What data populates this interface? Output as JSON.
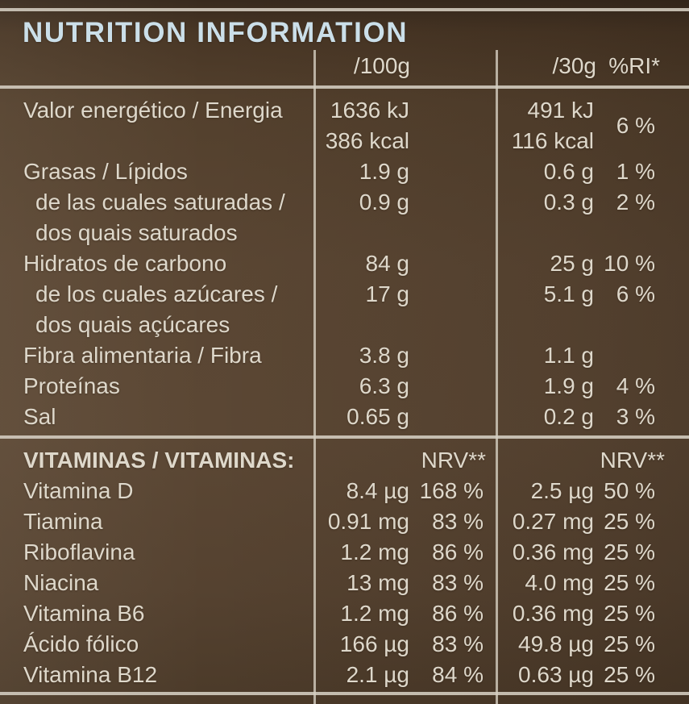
{
  "title": "NUTRITION INFORMATION",
  "columns": {
    "per100": "/100g",
    "per30": "/30g",
    "ri": "%RI*"
  },
  "colors": {
    "background_brown": "#5a4633",
    "background_dark_edge": "#382a1e",
    "text_cream": "#ded8cb",
    "title_pale_blue": "#cbdfe9",
    "rule_line": "#d5cec1"
  },
  "rows": [
    {
      "label": "Valor energético / Energia",
      "v100_kj": "1636 kJ",
      "v100_kcal": "386 kcal",
      "v30_kj": "491 kJ",
      "v30_kcal": "116 kcal",
      "ri": "6 %"
    },
    {
      "label": "Grasas / Lípidos",
      "v100": "1.9 g",
      "v30": "0.6 g",
      "ri": "1 %"
    },
    {
      "label": "de las cuales saturadas /",
      "v100": "0.9 g",
      "v30": "0.3 g",
      "ri": "2 %"
    },
    {
      "label": "dos quais saturados",
      "v100": "",
      "v30": "",
      "ri": ""
    },
    {
      "label": "Hidratos de carbono",
      "v100": "84 g",
      "v30": "25 g",
      "ri": "10 %"
    },
    {
      "label": "de los cuales azúcares /",
      "v100": "17 g",
      "v30": "5.1 g",
      "ri": "6 %"
    },
    {
      "label": "dos quais açúcares",
      "v100": "",
      "v30": "",
      "ri": ""
    },
    {
      "label": "Fibra alimentaria / Fibra",
      "v100": "3.8 g",
      "v30": "1.1 g",
      "ri": ""
    },
    {
      "label": "Proteínas",
      "v100": "6.3 g",
      "v30": "1.9 g",
      "ri": "4 %"
    },
    {
      "label": "Sal",
      "v100": "0.65 g",
      "v30": "0.2 g",
      "ri": "3 %"
    }
  ],
  "vitamins": {
    "header": "VITAMINAS / VITAMINAS:",
    "nrv_per100": "NRV**",
    "nrv_per30": "NRV**",
    "rows": [
      {
        "label": "Vitamina D",
        "v100": "8.4 µg",
        "nrv100": "168 %",
        "v30": "2.5 µg",
        "nrv30": "50 %"
      },
      {
        "label": "Tiamina",
        "v100": "0.91 mg",
        "nrv100": "83 %",
        "v30": "0.27 mg",
        "nrv30": "25 %"
      },
      {
        "label": "Riboflavina",
        "v100": "1.2 mg",
        "nrv100": "86 %",
        "v30": "0.36 mg",
        "nrv30": "25 %"
      },
      {
        "label": "Niacina",
        "v100": "13 mg",
        "nrv100": "83 %",
        "v30": "4.0 mg",
        "nrv30": "25 %"
      },
      {
        "label": "Vitamina B6",
        "v100": "1.2 mg",
        "nrv100": "86 %",
        "v30": "0.36 mg",
        "nrv30": "25 %"
      },
      {
        "label": "Ácido fólico",
        "v100": "166 µg",
        "nrv100": "83 %",
        "v30": "49.8 µg",
        "nrv30": "25 %"
      },
      {
        "label": "Vitamina B12",
        "v100": "2.1 µg",
        "nrv100": "84 %",
        "v30": "0.63 µg",
        "nrv30": "25 %"
      }
    ]
  }
}
